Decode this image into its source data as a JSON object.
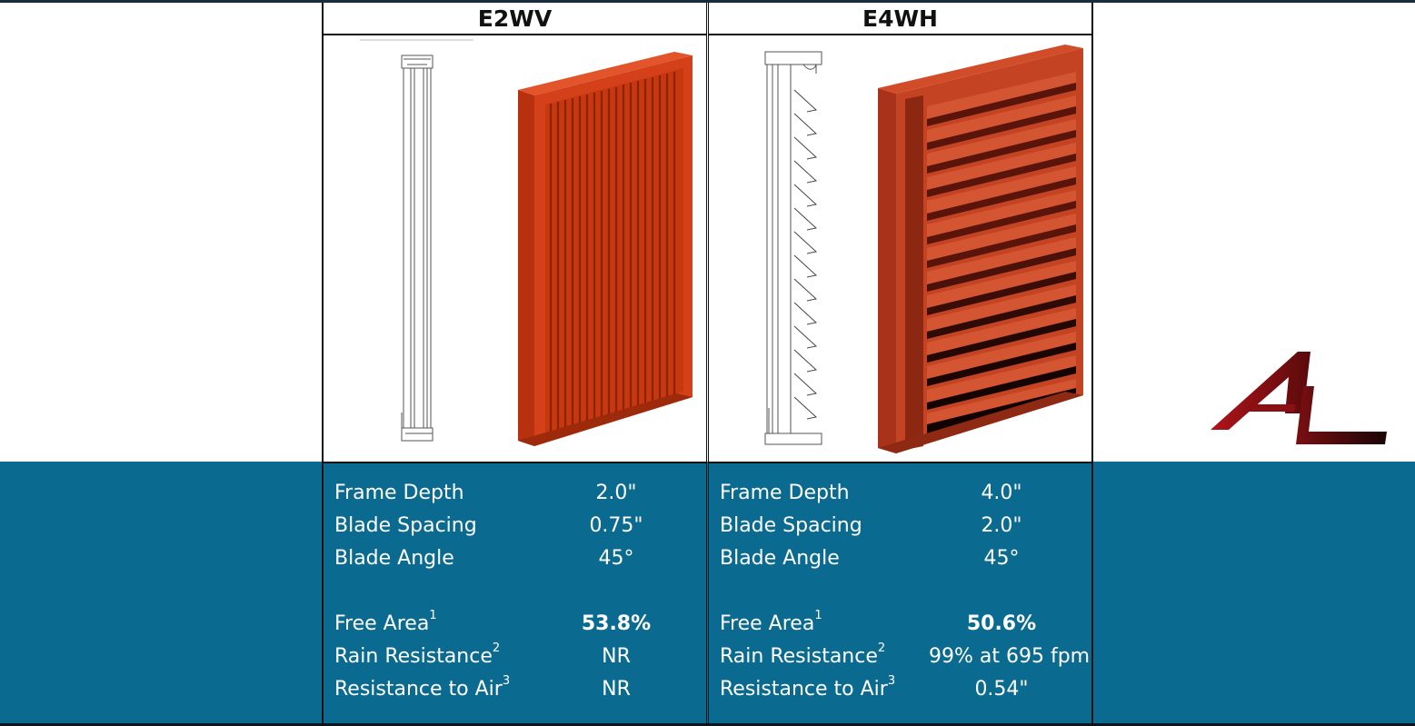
{
  "products": [
    {
      "name": "E2WV",
      "specs": {
        "frame_depth_label": "Frame Depth",
        "frame_depth": "2.0\"",
        "blade_spacing_label": "Blade Spacing",
        "blade_spacing": "0.75\"",
        "blade_angle_label": "Blade Angle",
        "blade_angle": "45°",
        "free_area_label": "Free Area",
        "free_area_note": "1",
        "free_area": "53.8%",
        "rain_label": "Rain Resistance",
        "rain_note": "2",
        "rain": "NR",
        "air_label": "Resistance to Air",
        "air_note": "3",
        "air": "NR"
      }
    },
    {
      "name": "E4WH",
      "specs": {
        "frame_depth_label": "Frame Depth",
        "frame_depth": "4.0\"",
        "blade_spacing_label": "Blade Spacing",
        "blade_spacing": "2.0\"",
        "blade_angle_label": "Blade Angle",
        "blade_angle": "45°",
        "free_area_label": "Free Area",
        "free_area_note": "1",
        "free_area": "50.6%",
        "rain_label": "Rain Resistance",
        "rain_note": "2",
        "rain": "99% at 695 fpm",
        "air_label": "Resistance to Air",
        "air_note": "3",
        "air": "0.54\""
      }
    }
  ],
  "colors": {
    "band": "#0b6a8f",
    "louver": "#d8431b",
    "logo": "#8b0f12"
  },
  "icons": [
    "al-logo-icon"
  ]
}
